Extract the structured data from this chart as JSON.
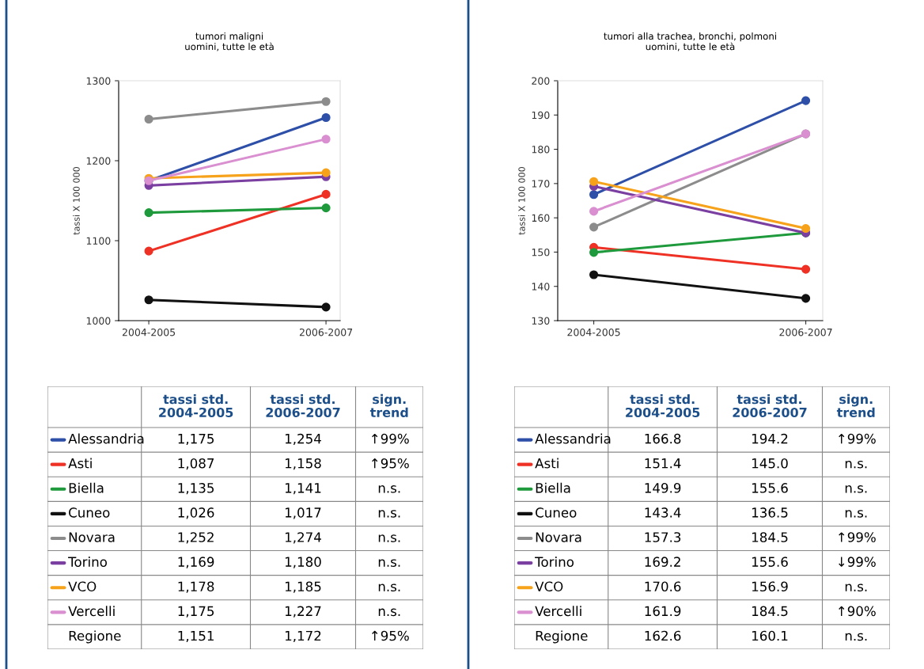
{
  "chart_data": [
    {
      "type": "line",
      "title": "tumori maligni\nuomini, tutte le età",
      "ylabel": "tassi X 100 000",
      "categories": [
        "2004-2005",
        "2006-2007"
      ],
      "ylim": [
        1000,
        1300
      ],
      "yticks": [
        1000,
        1100,
        1200,
        1300
      ],
      "marker": "circle",
      "grid": false,
      "legend": "bottom",
      "annotations": [
        "tassi std.\n2004-2005",
        "tassi std.\n2006-2007",
        "sign.\ntrend",
        "↑99%",
        "↑95%",
        "n.s.",
        "n.s.",
        "n.s.",
        "n.s.",
        "n.s.",
        "n.s.",
        "↑95%",
        "Regione",
        "1,151",
        "1,172"
      ],
      "series": [
        {
          "name": "Alessandria",
          "color": "#2e4fa8",
          "values": [
            1175,
            1254
          ],
          "value_labels": [
            "1,175",
            "1,254"
          ]
        },
        {
          "name": "Asti",
          "color": "#ee3124",
          "values": [
            1087,
            1158
          ],
          "value_labels": [
            "1,087",
            "1,158"
          ]
        },
        {
          "name": "Biella",
          "color": "#1e9a3c",
          "values": [
            1135,
            1141
          ],
          "value_labels": [
            "1,135",
            "1,141"
          ]
        },
        {
          "name": "Cuneo",
          "color": "#111111",
          "values": [
            1026,
            1017
          ],
          "value_labels": [
            "1,026",
            "1,017"
          ]
        },
        {
          "name": "Novara",
          "color": "#8c8c8c",
          "values": [
            1252,
            1274
          ],
          "value_labels": [
            "1,252",
            "1,274"
          ]
        },
        {
          "name": "Torino",
          "color": "#7a3fa0",
          "values": [
            1169,
            1180
          ],
          "value_labels": [
            "1,169",
            "1,180"
          ]
        },
        {
          "name": "VCO",
          "color": "#f7a21b",
          "values": [
            1178,
            1185
          ],
          "value_labels": [
            "1,178",
            "1,185"
          ]
        },
        {
          "name": "Vercelli",
          "color": "#d98fd0",
          "values": [
            1175,
            1227
          ],
          "value_labels": [
            "1,175",
            "1,227"
          ]
        }
      ]
    },
    {
      "type": "line",
      "title": "tumori alla trachea, bronchi, polmoni\nuomini, tutte le età",
      "ylabel": "tassi X 100 000",
      "categories": [
        "2004-2005",
        "2006-2007"
      ],
      "ylim": [
        130,
        200
      ],
      "yticks": [
        130,
        140,
        150,
        160,
        170,
        180,
        190,
        200
      ],
      "marker": "circle",
      "grid": false,
      "legend": "bottom",
      "annotations": [
        "tassi std.\n2004-2005",
        "tassi std.\n2006-2007",
        "sign.\ntrend",
        "↑99%",
        "n.s.",
        "n.s.",
        "n.s.",
        "↑99%",
        "↓99%",
        "n.s.",
        "↑90%",
        "n.s.",
        "Regione",
        "162.6",
        "160.1"
      ],
      "series": [
        {
          "name": "Alessandria",
          "color": "#2e4fa8",
          "values": [
            166.8,
            194.2
          ],
          "value_labels": [
            "166.8",
            "194.2"
          ]
        },
        {
          "name": "Asti",
          "color": "#ee3124",
          "values": [
            151.4,
            145.0
          ],
          "value_labels": [
            "151.4",
            "145.0"
          ]
        },
        {
          "name": "Biella",
          "color": "#1e9a3c",
          "values": [
            149.9,
            155.6
          ],
          "value_labels": [
            "149.9",
            "155.6"
          ]
        },
        {
          "name": "Cuneo",
          "color": "#111111",
          "values": [
            143.4,
            136.5
          ],
          "value_labels": [
            "143.4",
            "136.5"
          ]
        },
        {
          "name": "Novara",
          "color": "#8c8c8c",
          "values": [
            157.3,
            184.5
          ],
          "value_labels": [
            "157.3",
            "184.5"
          ]
        },
        {
          "name": "Torino",
          "color": "#7a3fa0",
          "values": [
            169.2,
            155.6
          ],
          "value_labels": [
            "169.2",
            "155.6"
          ]
        },
        {
          "name": "VCO",
          "color": "#f7a21b",
          "values": [
            170.6,
            156.9
          ],
          "value_labels": [
            "170.6",
            "156.9"
          ]
        },
        {
          "name": "Vercelli",
          "color": "#d98fd0",
          "values": [
            161.9,
            184.5
          ],
          "value_labels": [
            "161.9",
            "184.5"
          ]
        }
      ]
    }
  ]
}
